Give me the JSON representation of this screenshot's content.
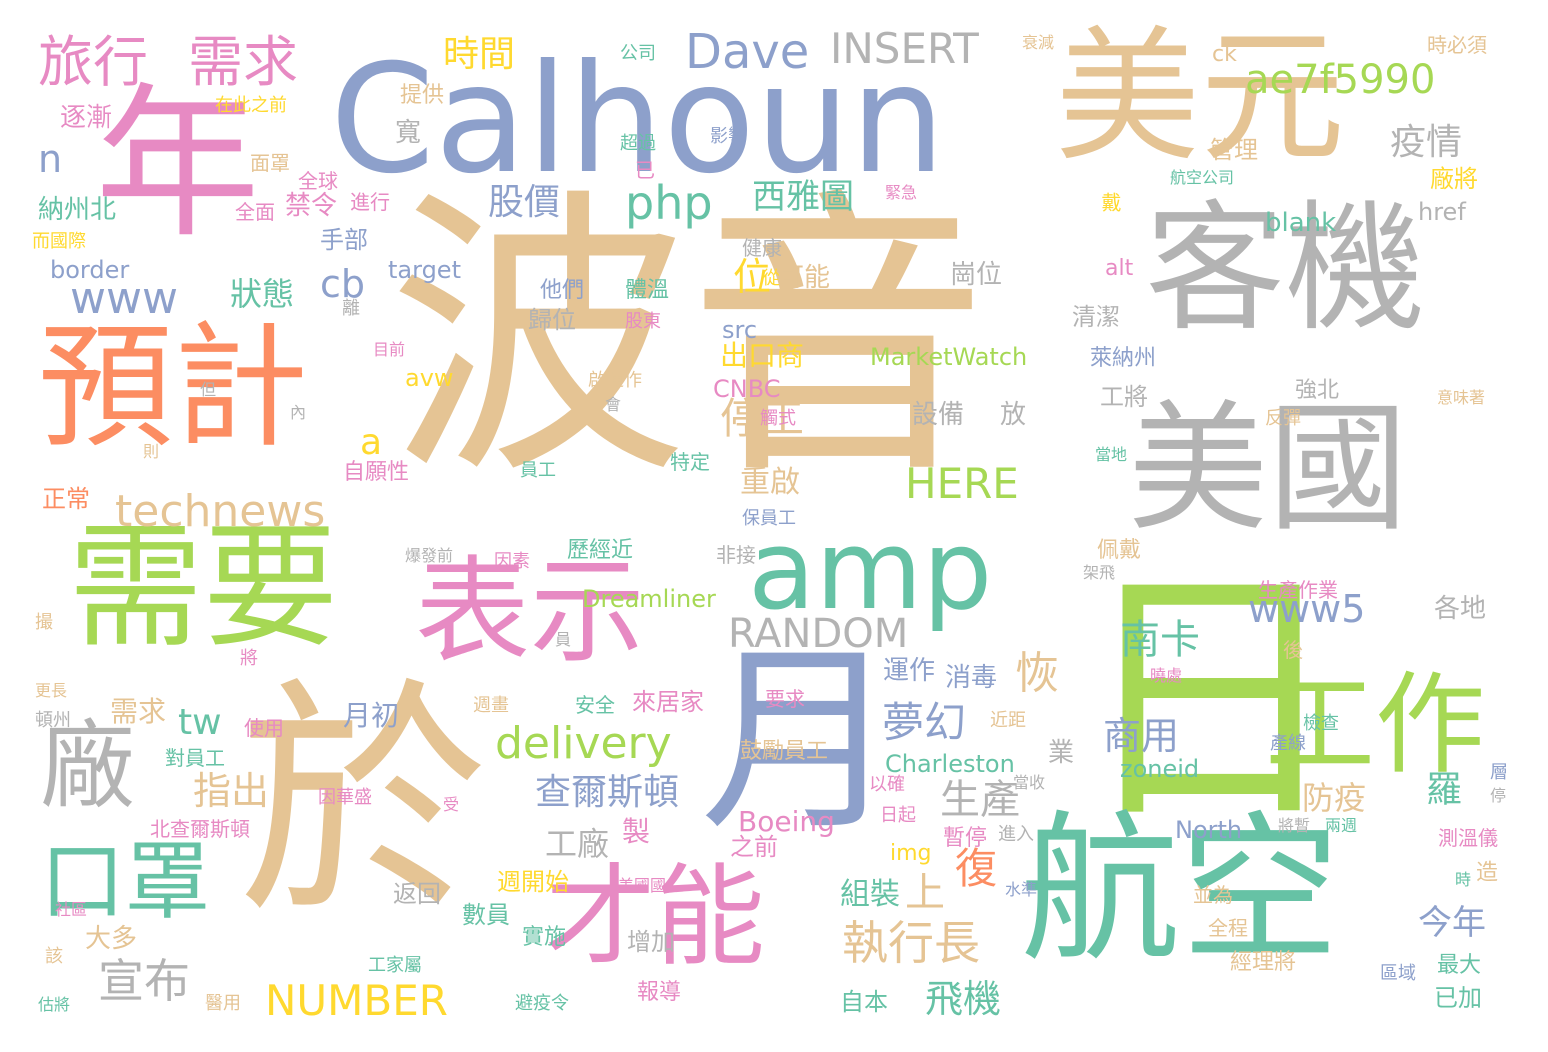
{
  "palette": {
    "tan": "#e5c494",
    "periwinkle": "#8da0cb",
    "pink": "#e78ac3",
    "green": "#a6d854",
    "teal": "#66c2a5",
    "orange": "#fc8d62",
    "gray": "#b3b3b3",
    "yellow": "#ffd92f"
  },
  "words": [
    {
      "text": "波音",
      "color": "tan"
    },
    {
      "text": "Calhoun",
      "color": "periwinkle"
    },
    {
      "text": "年",
      "color": "pink"
    },
    {
      "text": "美元",
      "color": "tan"
    },
    {
      "text": "客機",
      "color": "gray"
    },
    {
      "text": "美國",
      "color": "gray"
    },
    {
      "text": "預計",
      "color": "orange"
    },
    {
      "text": "需要",
      "color": "green"
    },
    {
      "text": "表示",
      "color": "pink"
    },
    {
      "text": "amp",
      "color": "teal"
    },
    {
      "text": "日",
      "color": "green"
    },
    {
      "text": "於",
      "color": "tan"
    },
    {
      "text": "月",
      "color": "periwinkle"
    },
    {
      "text": "航空",
      "color": "teal"
    },
    {
      "text": "才能",
      "color": "pink"
    },
    {
      "text": "廠",
      "color": "gray"
    },
    {
      "text": "工作",
      "color": "green"
    },
    {
      "text": "口罩",
      "color": "teal"
    },
    {
      "text": "旅行",
      "color": "pink"
    },
    {
      "text": "需求",
      "color": "pink"
    },
    {
      "text": "Dave",
      "color": "periwinkle"
    },
    {
      "text": "INSERT",
      "color": "gray"
    },
    {
      "text": "ae7f5990",
      "color": "green"
    },
    {
      "text": "php",
      "color": "teal"
    },
    {
      "text": "www",
      "color": "periwinkle"
    },
    {
      "text": "technews",
      "color": "tan"
    },
    {
      "text": "delivery",
      "color": "green"
    },
    {
      "text": "RANDOM",
      "color": "gray"
    },
    {
      "text": "www5",
      "color": "periwinkle"
    },
    {
      "text": "HERE",
      "color": "green"
    },
    {
      "text": "NUMBER",
      "color": "yellow"
    },
    {
      "text": "宣布",
      "color": "gray"
    },
    {
      "text": "執行長",
      "color": "tan"
    },
    {
      "text": "夢幻",
      "color": "periwinkle"
    },
    {
      "text": "生產",
      "color": "gray"
    },
    {
      "text": "停工",
      "color": "tan"
    },
    {
      "text": "查爾斯頓",
      "color": "periwinkle"
    },
    {
      "text": "南卡",
      "color": "teal"
    },
    {
      "text": "商用",
      "color": "periwinkle"
    },
    {
      "text": "股價",
      "color": "periwinkle"
    },
    {
      "text": "西雅圖",
      "color": "teal"
    },
    {
      "text": "疫情",
      "color": "gray"
    },
    {
      "text": "時間",
      "color": "yellow"
    },
    {
      "text": "狀態",
      "color": "teal"
    },
    {
      "text": "cb",
      "color": "periwinkle"
    },
    {
      "text": "tw",
      "color": "teal"
    },
    {
      "text": "a",
      "color": "yellow"
    },
    {
      "text": "n",
      "color": "periwinkle"
    },
    {
      "text": "指出",
      "color": "tan"
    },
    {
      "text": "恢",
      "color": "tan"
    },
    {
      "text": "復",
      "color": "orange"
    },
    {
      "text": "上",
      "color": "tan"
    },
    {
      "text": "飛機",
      "color": "teal"
    },
    {
      "text": "今年",
      "color": "periwinkle"
    },
    {
      "text": "羅",
      "color": "teal"
    },
    {
      "text": "防疫",
      "color": "tan"
    },
    {
      "text": "工廠",
      "color": "gray"
    },
    {
      "text": "組裝",
      "color": "teal"
    },
    {
      "text": "位",
      "color": "yellow"
    },
    {
      "text": "出口商",
      "color": "yellow"
    },
    {
      "text": "運作",
      "color": "periwinkle"
    },
    {
      "text": "消毒",
      "color": "periwinkle"
    },
    {
      "text": "重啟",
      "color": "tan"
    },
    {
      "text": "月初",
      "color": "periwinkle"
    },
    {
      "text": "需求",
      "color": "tan"
    },
    {
      "text": "禁令",
      "color": "pink"
    },
    {
      "text": "手部",
      "color": "periwinkle"
    },
    {
      "text": "逐漸",
      "color": "pink"
    },
    {
      "text": "提供",
      "color": "tan"
    },
    {
      "text": "寬",
      "color": "gray"
    },
    {
      "text": "納州北",
      "color": "teal"
    },
    {
      "text": "border",
      "color": "periwinkle"
    },
    {
      "text": "target",
      "color": "periwinkle"
    },
    {
      "text": "src",
      "color": "periwinkle"
    },
    {
      "text": "avw",
      "color": "yellow"
    },
    {
      "text": "CNBC",
      "color": "pink"
    },
    {
      "text": "img",
      "color": "yellow"
    },
    {
      "text": "Boeing",
      "color": "pink"
    },
    {
      "text": "North",
      "color": "periwinkle"
    },
    {
      "text": "zoneid",
      "color": "teal"
    },
    {
      "text": "Charleston",
      "color": "teal"
    },
    {
      "text": "MarketWatch",
      "color": "green"
    },
    {
      "text": "Dreamliner",
      "color": "green"
    },
    {
      "text": "blank",
      "color": "teal"
    },
    {
      "text": "href",
      "color": "gray"
    },
    {
      "text": "alt",
      "color": "pink"
    },
    {
      "text": "ck",
      "color": "tan"
    },
    {
      "text": "各地",
      "color": "gray"
    },
    {
      "text": "管理",
      "color": "tan"
    },
    {
      "text": "廠將",
      "color": "yellow"
    },
    {
      "text": "清潔",
      "color": "gray"
    },
    {
      "text": "崗位",
      "color": "gray"
    },
    {
      "text": "歸位",
      "color": "gray"
    },
    {
      "text": "可能",
      "color": "tan"
    },
    {
      "text": "工將",
      "color": "gray"
    },
    {
      "text": "強北",
      "color": "gray"
    },
    {
      "text": "設備",
      "color": "gray"
    },
    {
      "text": "放",
      "color": "gray"
    },
    {
      "text": "歷經近",
      "color": "teal"
    },
    {
      "text": "週開始",
      "color": "yellow"
    },
    {
      "text": "數員",
      "color": "teal"
    },
    {
      "text": "實施",
      "color": "teal"
    },
    {
      "text": "大多",
      "color": "tan"
    },
    {
      "text": "返回",
      "color": "gray"
    },
    {
      "text": "增加",
      "color": "gray"
    },
    {
      "text": "報導",
      "color": "pink"
    },
    {
      "text": "自本",
      "color": "teal"
    },
    {
      "text": "製",
      "color": "pink"
    },
    {
      "text": "造",
      "color": "tan"
    },
    {
      "text": "業",
      "color": "gray"
    },
    {
      "text": "最大",
      "color": "teal"
    },
    {
      "text": "已加",
      "color": "teal"
    },
    {
      "text": "經理將",
      "color": "tan"
    },
    {
      "text": "全程",
      "color": "tan"
    },
    {
      "text": "並為",
      "color": "tan"
    },
    {
      "text": "測溫儀",
      "color": "pink"
    },
    {
      "text": "檢查",
      "color": "teal"
    },
    {
      "text": "萊納州",
      "color": "periwinkle"
    },
    {
      "text": "佩戴",
      "color": "tan"
    },
    {
      "text": "來居家",
      "color": "pink"
    },
    {
      "text": "鼓勵員工",
      "color": "tan"
    },
    {
      "text": "要求",
      "color": "pink"
    },
    {
      "text": "之前",
      "color": "pink"
    },
    {
      "text": "暫停",
      "color": "pink"
    },
    {
      "text": "進入",
      "color": "gray"
    },
    {
      "text": "日起",
      "color": "pink"
    },
    {
      "text": "以確",
      "color": "pink"
    },
    {
      "text": "正常",
      "color": "orange"
    },
    {
      "text": "自願性",
      "color": "pink"
    },
    {
      "text": "對員工",
      "color": "teal"
    },
    {
      "text": "使用",
      "color": "pink"
    },
    {
      "text": "北查爾斯頓",
      "color": "pink"
    },
    {
      "text": "因華盛",
      "color": "pink"
    },
    {
      "text": "公司",
      "color": "teal"
    },
    {
      "text": "在此之前",
      "color": "yellow"
    },
    {
      "text": "面罩",
      "color": "tan"
    },
    {
      "text": "全球",
      "color": "pink"
    },
    {
      "text": "進行",
      "color": "pink"
    },
    {
      "text": "全面",
      "color": "pink"
    },
    {
      "text": "而國際",
      "color": "yellow"
    },
    {
      "text": "超過",
      "color": "teal"
    },
    {
      "text": "影響",
      "color": "periwinkle"
    },
    {
      "text": "已",
      "color": "pink"
    },
    {
      "text": "緊急",
      "color": "pink"
    },
    {
      "text": "健康",
      "color": "gray"
    },
    {
      "text": "從",
      "color": "yellow"
    },
    {
      "text": "他們",
      "color": "periwinkle"
    },
    {
      "text": "體溫",
      "color": "teal"
    },
    {
      "text": "股東",
      "color": "pink"
    },
    {
      "text": "離",
      "color": "gray"
    },
    {
      "text": "目前",
      "color": "pink"
    },
    {
      "text": "內",
      "color": "gray"
    },
    {
      "text": "衰減",
      "color": "tan"
    },
    {
      "text": "時必須",
      "color": "tan"
    },
    {
      "text": "航空公司",
      "color": "teal"
    },
    {
      "text": "戴",
      "color": "yellow"
    },
    {
      "text": "後",
      "color": "tan"
    },
    {
      "text": "生產作業",
      "color": "pink"
    },
    {
      "text": "架飛",
      "color": "gray"
    },
    {
      "text": "意味著",
      "color": "tan"
    },
    {
      "text": "反彈",
      "color": "tan"
    },
    {
      "text": "當地",
      "color": "teal"
    },
    {
      "text": "觸式",
      "color": "pink"
    },
    {
      "text": "特定",
      "color": "teal"
    },
    {
      "text": "員工",
      "color": "teal"
    },
    {
      "text": "保員工",
      "color": "periwinkle"
    },
    {
      "text": "非接",
      "color": "gray"
    },
    {
      "text": "因素",
      "color": "pink"
    },
    {
      "text": "爆發前",
      "color": "gray"
    },
    {
      "text": "啟運作",
      "color": "tan"
    },
    {
      "text": "會",
      "color": "gray"
    },
    {
      "text": "週畫",
      "color": "tan"
    },
    {
      "text": "安全",
      "color": "teal"
    },
    {
      "text": "產線",
      "color": "periwinkle"
    },
    {
      "text": "層",
      "color": "periwinkle"
    },
    {
      "text": "停",
      "color": "gray"
    },
    {
      "text": "將暫",
      "color": "gray"
    },
    {
      "text": "兩週",
      "color": "teal"
    },
    {
      "text": "時",
      "color": "teal"
    },
    {
      "text": "區域",
      "color": "periwinkle"
    },
    {
      "text": "水準",
      "color": "periwinkle"
    },
    {
      "text": "美國國",
      "color": "pink"
    },
    {
      "text": "工家屬",
      "color": "teal"
    },
    {
      "text": "避疫令",
      "color": "teal"
    },
    {
      "text": "醫用",
      "color": "tan"
    },
    {
      "text": "估將",
      "color": "teal"
    },
    {
      "text": "該",
      "color": "tan"
    },
    {
      "text": "社區",
      "color": "pink"
    },
    {
      "text": "受",
      "color": "pink"
    },
    {
      "text": "頓州",
      "color": "gray"
    },
    {
      "text": "更長",
      "color": "tan"
    },
    {
      "text": "撮",
      "color": "tan"
    },
    {
      "text": "將",
      "color": "pink"
    },
    {
      "text": "員",
      "color": "gray"
    },
    {
      "text": "但",
      "color": "gray"
    },
    {
      "text": "則",
      "color": "tan"
    },
    {
      "text": "當收",
      "color": "gray"
    },
    {
      "text": "曉處",
      "color": "pink"
    },
    {
      "text": "近距",
      "color": "tan"
    }
  ]
}
